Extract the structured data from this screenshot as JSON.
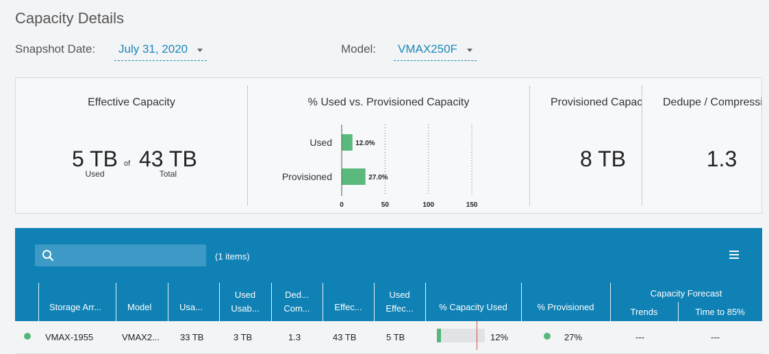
{
  "header": {
    "title": "Capacity Details"
  },
  "filters": {
    "snapshot_label": "Snapshot Date:",
    "snapshot_value": "July 31, 2020",
    "model_label": "Model:",
    "model_value": "VMAX250F"
  },
  "summary": {
    "effective": {
      "title": "Effective Capacity",
      "used_value": "5 TB",
      "used_label": "Used",
      "of_label": "of",
      "total_value": "43 TB",
      "total_label": "Total"
    },
    "used_vs_provisioned": {
      "title": "% Used vs. Provisioned Capacity"
    },
    "provisioned": {
      "title": "Provisioned Capacity",
      "value": "8 TB"
    },
    "dedupe": {
      "title": "Dedupe / Compression",
      "value": "1.3"
    }
  },
  "chart_data": {
    "type": "bar",
    "orientation": "horizontal",
    "categories": [
      "Used",
      "Provisioned"
    ],
    "values": [
      12.0,
      27.0
    ],
    "value_labels": [
      "12.0%",
      "27.0%"
    ],
    "xticks": [
      0,
      50,
      100,
      150
    ],
    "xlim": [
      0,
      150
    ],
    "grid": true,
    "color": "#5cb97d"
  },
  "table": {
    "search_placeholder": "",
    "item_count": "(1 items)",
    "columns": [
      "Storage Arr...",
      "Model",
      "Usa...",
      "Used",
      "Usab...",
      "Ded...",
      "Com...",
      "Effec...",
      "Used",
      "Effec...",
      "% Capacity Used",
      "% Provisioned",
      "Capacity Forecast",
      "Trends",
      "Time to 85%"
    ],
    "rows": [
      {
        "storage_array": "VMAX-1955",
        "model": "VMAX2...",
        "usable": "33 TB",
        "used_usable": "3 TB",
        "dedupe": "1.3",
        "effective": "43 TB",
        "used_effective": "5 TB",
        "capacity_used_pct": "12%",
        "capacity_used_value": 0.12,
        "provisioned_pct": "27%",
        "trends": "---",
        "time_to_85": "---"
      }
    ]
  },
  "colors": {
    "accent": "#1a87b7",
    "table_header": "#0f81b4",
    "status_ok": "#55b87a",
    "marker": "#d64f32"
  }
}
